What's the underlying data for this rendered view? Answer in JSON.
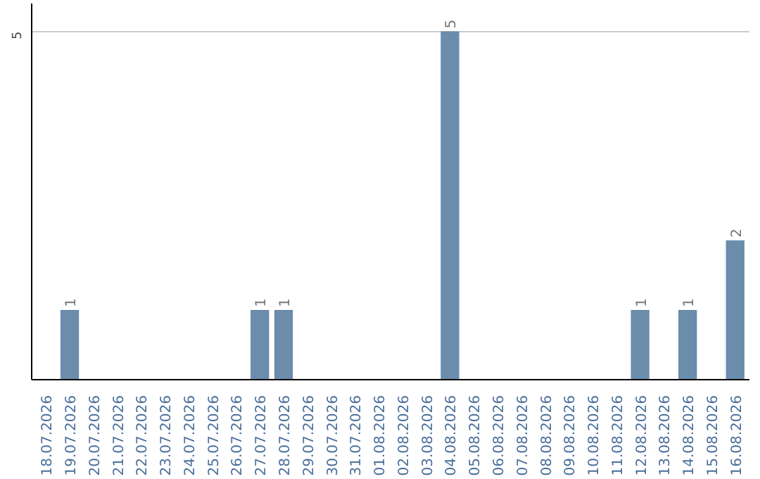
{
  "chart_data": {
    "type": "bar",
    "categories": [
      "18.07.2026",
      "19.07.2026",
      "20.07.2026",
      "21.07.2026",
      "22.07.2026",
      "23.07.2026",
      "24.07.2026",
      "25.07.2026",
      "26.07.2026",
      "27.07.2026",
      "28.07.2026",
      "29.07.2026",
      "30.07.2026",
      "31.07.2026",
      "01.08.2026",
      "02.08.2026",
      "03.08.2026",
      "04.08.2026",
      "05.08.2026",
      "06.08.2026",
      "07.08.2026",
      "08.08.2026",
      "09.08.2026",
      "10.08.2026",
      "11.08.2026",
      "12.08.2026",
      "13.08.2026",
      "14.08.2026",
      "15.08.2026",
      "16.08.2026"
    ],
    "values": [
      0,
      1,
      0,
      0,
      0,
      0,
      0,
      0,
      0,
      1,
      1,
      0,
      0,
      0,
      0,
      0,
      0,
      5,
      0,
      0,
      0,
      0,
      0,
      0,
      0,
      1,
      0,
      1,
      0,
      2
    ],
    "value_labels": [
      null,
      "1",
      null,
      null,
      null,
      null,
      null,
      null,
      null,
      "1",
      "1",
      null,
      null,
      null,
      null,
      null,
      null,
      "5",
      null,
      null,
      null,
      null,
      null,
      null,
      null,
      "1",
      null,
      "1",
      null,
      "2"
    ],
    "color": "#6b8cab",
    "ylim": [
      0,
      5.4
    ],
    "yticks": [
      5
    ],
    "grid": "y"
  }
}
